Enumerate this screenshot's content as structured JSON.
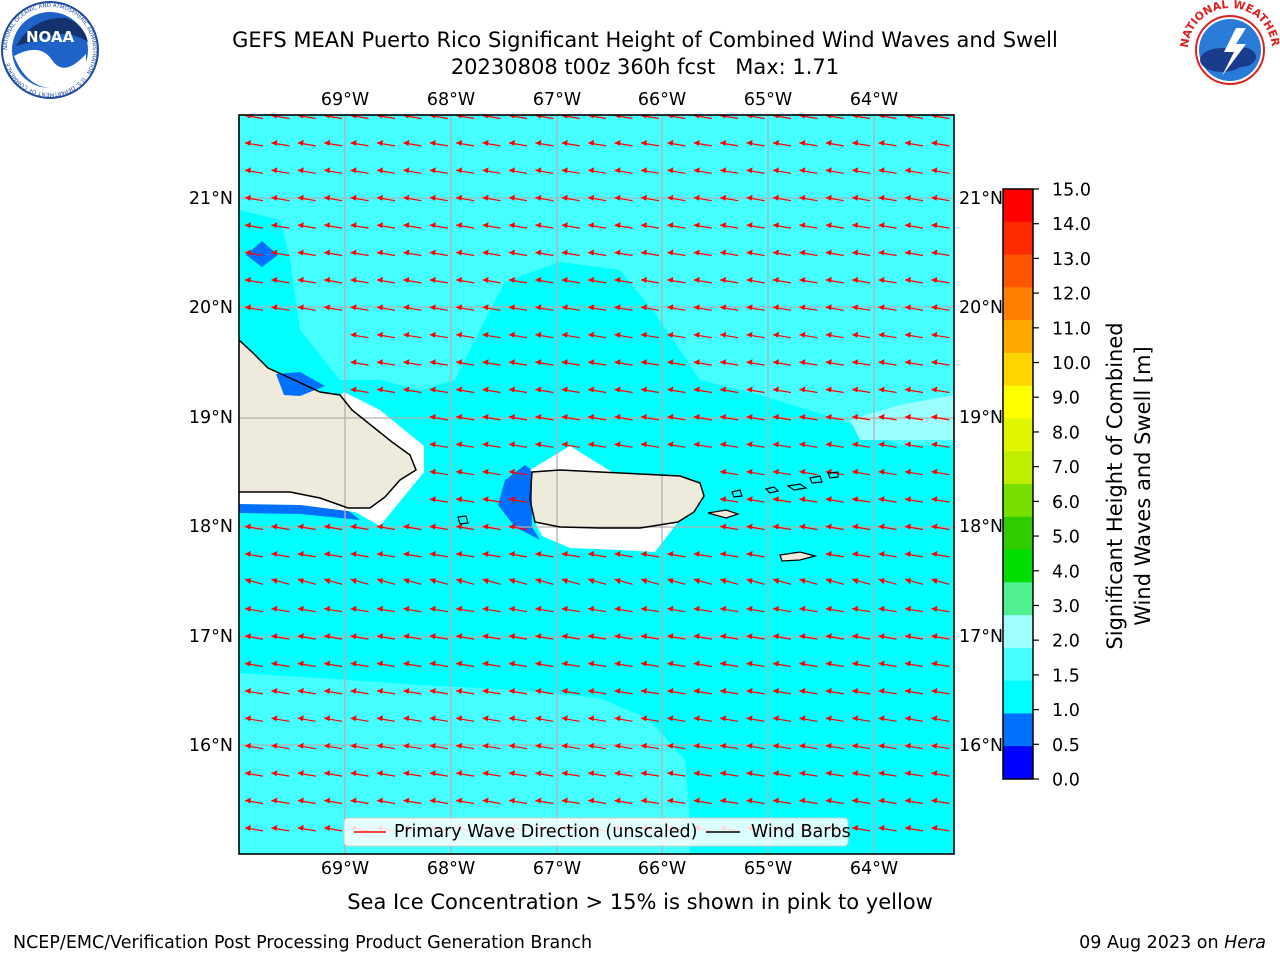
{
  "title_line1": "GEFS MEAN Puerto Rico Significant Height of Combined Wind Waves and Swell",
  "title_line2": "20230808 t00z 360h fcst   Max: 1.71",
  "caption": "Sea Ice Concentration > 15% is shown in pink to yellow",
  "footer_left": "NCEP/EMC/Verification Post Processing Product Generation Branch",
  "footer_right_prefix": "09 Aug 2023 on ",
  "footer_right_host": "Hera",
  "logos": {
    "left_icon": "noaa-logo",
    "left_text": "NOAA",
    "left_ring_text": "NATIONAL OCEANIC AND ATMOSPHERIC ADMINISTRATION · U.S. DEPARTMENT OF COMMERCE",
    "right_icon": "national-weather-service-logo",
    "right_ring_text": "NATIONAL WEATHER SERVICE"
  },
  "map": {
    "lon_labels": [
      "69°W",
      "68°W",
      "67°W",
      "66°W",
      "65°W",
      "64°W"
    ],
    "lat_labels": [
      "21°N",
      "20°N",
      "19°N",
      "18°N",
      "17°N",
      "16°N"
    ],
    "legend": {
      "primary_wave": "Primary Wave Direction (unscaled)",
      "wind_barbs": "Wind Barbs"
    },
    "wave_direction": "west",
    "colors": {
      "ocean_1_0_1_5": "#00ffff",
      "ocean_1_5_2_0": "#45ffff",
      "ocean_2_0_3_0": "#9cffff",
      "land": "#efebdc",
      "low_0_5_1_0": "#0070ff",
      "low_0_0_0_5": "#0035ff",
      "arrow": "#ff0000",
      "grid": "#b0b0b0"
    }
  },
  "colorbar": {
    "label_line1": "Significant Height of Combined",
    "label_line2": "Wind Waves and Swell [m]",
    "ticks": [
      "15.0",
      "14.0",
      "13.0",
      "12.0",
      "11.0",
      "10.0",
      "9.0",
      "8.0",
      "7.0",
      "6.0",
      "5.0",
      "4.0",
      "3.0",
      "2.0",
      "1.5",
      "1.0",
      "0.5",
      "0.0"
    ],
    "colors": [
      "#ff0000",
      "#ff2a00",
      "#ff5500",
      "#ff8000",
      "#ffaa00",
      "#ffd400",
      "#ffff00",
      "#e0f500",
      "#c0ee00",
      "#78e000",
      "#30cc00",
      "#00dd00",
      "#50f090",
      "#a0ffff",
      "#45ffff",
      "#00ffff",
      "#0070ff",
      "#0000ff"
    ]
  }
}
